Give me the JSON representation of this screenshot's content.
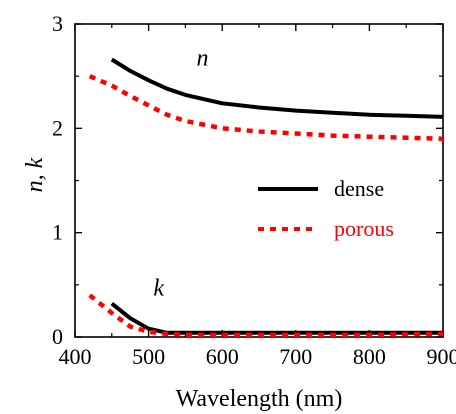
{
  "chart_data": {
    "type": "line",
    "xlabel": "Wavelength (nm)",
    "ylabel": "n, k",
    "xlim": [
      400,
      900
    ],
    "ylim": [
      0,
      3
    ],
    "xticks": [
      400,
      500,
      600,
      700,
      800,
      900
    ],
    "yticks": [
      0,
      1,
      2,
      3
    ],
    "grid": false,
    "legend_position": "right",
    "annotations": [
      {
        "text": "n",
        "x": 565,
        "y": 2.6
      },
      {
        "text": "k",
        "x": 520,
        "y": 0.4
      }
    ],
    "series": [
      {
        "name": "dense",
        "quantity": "n",
        "color": "#000000",
        "style": "solid",
        "x": [
          450,
          475,
          500,
          525,
          550,
          600,
          650,
          700,
          750,
          800,
          850,
          900
        ],
        "y": [
          2.66,
          2.55,
          2.46,
          2.38,
          2.32,
          2.24,
          2.2,
          2.17,
          2.15,
          2.13,
          2.12,
          2.11
        ]
      },
      {
        "name": "porous",
        "quantity": "n",
        "color": "#ff0000",
        "style": "dotted",
        "x": [
          420,
          450,
          475,
          500,
          525,
          550,
          600,
          650,
          700,
          750,
          800,
          850,
          900
        ],
        "y": [
          2.5,
          2.41,
          2.31,
          2.22,
          2.13,
          2.07,
          2.0,
          1.97,
          1.95,
          1.93,
          1.92,
          1.91,
          1.9
        ]
      },
      {
        "name": "dense",
        "quantity": "k",
        "color": "#000000",
        "style": "solid",
        "x": [
          450,
          475,
          500,
          525,
          550,
          600,
          700,
          800,
          900
        ],
        "y": [
          0.32,
          0.18,
          0.08,
          0.04,
          0.04,
          0.04,
          0.04,
          0.04,
          0.04
        ]
      },
      {
        "name": "porous",
        "quantity": "k",
        "color": "#ff0000",
        "style": "dotted",
        "x": [
          420,
          450,
          475,
          500,
          525,
          550,
          600,
          700,
          800,
          900
        ],
        "y": [
          0.4,
          0.23,
          0.1,
          0.05,
          0.03,
          0.02,
          0.02,
          0.02,
          0.02,
          0.03
        ]
      }
    ],
    "legend": [
      {
        "label": "dense",
        "color": "#000000",
        "style": "solid"
      },
      {
        "label": "porous",
        "color": "#ff0000",
        "style": "dotted"
      }
    ]
  }
}
